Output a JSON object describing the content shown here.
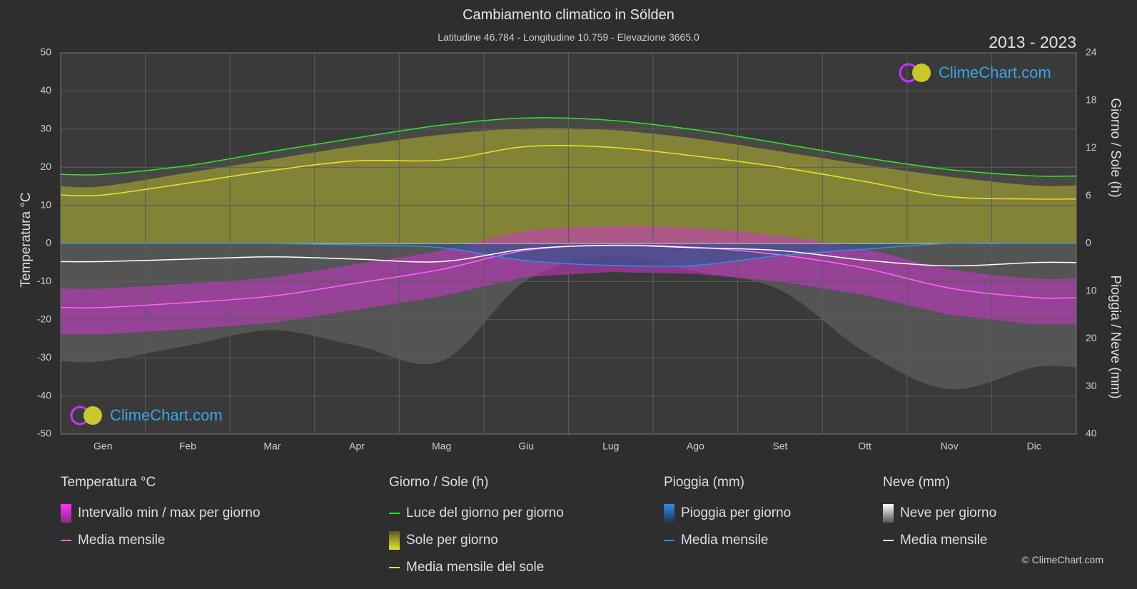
{
  "title": "Cambiamento climatico in Sölden",
  "subtitle": "Latitudine 46.784 - Longitudine 10.759 - Elevazione 3665.0",
  "year_range": "2013 - 2023",
  "brand": "ClimeChart.com",
  "copyright": "© ClimeChart.com",
  "axes": {
    "left_label": "Temperatura °C",
    "right_top_label": "Giorno / Sole (h)",
    "right_bottom_label": "Pioggia / Neve (mm)"
  },
  "legend": {
    "temperature": {
      "heading": "Temperatura °C",
      "items": [
        "Intervallo min / max per giorno",
        "Media mensile"
      ]
    },
    "sun": {
      "heading": "Giorno / Sole (h)",
      "items": [
        "Luce del giorno per giorno",
        "Sole per giorno",
        "Media mensile del sole"
      ]
    },
    "rain": {
      "heading": "Pioggia (mm)",
      "items": [
        "Pioggia per giorno",
        "Media mensile"
      ]
    },
    "snow": {
      "heading": "Neve (mm)",
      "items": [
        "Neve per giorno",
        "Media mensile"
      ]
    }
  },
  "colors": {
    "background": "#2e2e2e",
    "daylight_line": "#2ee82e",
    "sun_line": "#e6e62e",
    "sun_fill": "#b4b42e",
    "temp_line": "#ff66ff",
    "temp_fill": "#cc33cc",
    "rain_line": "#2e8ee6",
    "snow_line": "#ffffff",
    "brand": "#35a6e6"
  },
  "chart_data": {
    "type": "line",
    "categories": [
      "Gen",
      "Feb",
      "Mar",
      "Apr",
      "Mag",
      "Giu",
      "Lug",
      "Ago",
      "Set",
      "Ott",
      "Nov",
      "Dic"
    ],
    "left_axis": {
      "label": "Temperatura °C",
      "ylim": [
        -50,
        50
      ],
      "ticks": [
        50,
        40,
        30,
        20,
        10,
        0,
        -10,
        -20,
        -30,
        -40,
        -50
      ]
    },
    "right_top_axis": {
      "label": "Giorno / Sole (h)",
      "ylim": [
        0,
        24
      ],
      "ticks": [
        24,
        18,
        12,
        6,
        0
      ]
    },
    "right_bottom_axis": {
      "label": "Pioggia / Neve (mm)",
      "ylim": [
        0,
        40
      ],
      "ticks": [
        0,
        10,
        20,
        30,
        40
      ]
    },
    "grid": true,
    "series": [
      {
        "name": "Luce del giorno per giorno",
        "axis": "right_top",
        "values": [
          8.7,
          9.8,
          11.6,
          13.3,
          14.9,
          15.8,
          15.5,
          14.3,
          12.6,
          10.8,
          9.3,
          8.5
        ]
      },
      {
        "name": "Media mensile del sole",
        "axis": "right_top",
        "values": [
          6.1,
          7.6,
          9.2,
          10.4,
          10.5,
          12.2,
          12.1,
          11.0,
          9.6,
          7.8,
          5.9,
          5.6
        ]
      },
      {
        "name": "Sole per giorno",
        "axis": "right_top",
        "values": [
          7.2,
          8.9,
          10.6,
          12.3,
          13.7,
          14.5,
          14.3,
          13.2,
          11.6,
          9.9,
          8.4,
          7.3
        ]
      },
      {
        "name": "Media mensile",
        "metric": "temperature",
        "axis": "left",
        "values": [
          -16.8,
          -15.5,
          -13.8,
          -10.4,
          -6.8,
          -1.8,
          -0.5,
          -1.0,
          -3.0,
          -6.5,
          -11.7,
          -14.2
        ]
      },
      {
        "name": "Media mensile",
        "metric": "rain",
        "axis": "right_bottom",
        "values": [
          0.0,
          0.0,
          0.0,
          0.3,
          0.9,
          3.6,
          4.6,
          4.6,
          2.5,
          1.2,
          0.0,
          0.0
        ]
      },
      {
        "name": "Media mensile",
        "metric": "snow",
        "axis": "right_bottom",
        "values": [
          3.8,
          3.3,
          2.8,
          3.3,
          3.8,
          1.2,
          0.4,
          0.9,
          1.5,
          3.5,
          4.7,
          4.0
        ]
      }
    ]
  }
}
